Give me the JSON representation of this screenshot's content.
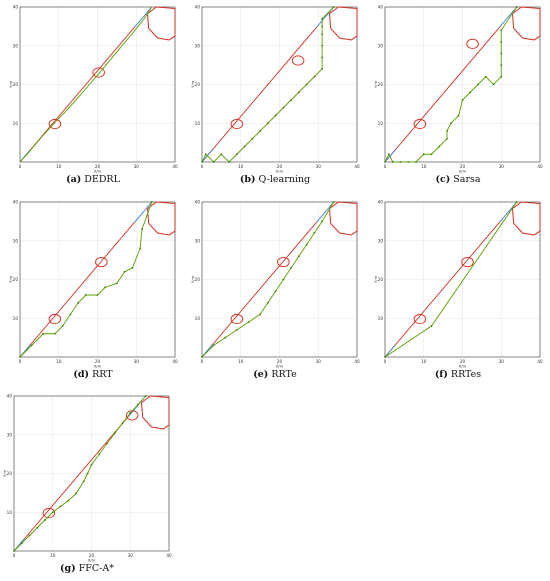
{
  "figure": {
    "panels": [
      {
        "letter": "(a)",
        "name": "DEDRL"
      },
      {
        "letter": "(b)",
        "name": "Q-learning"
      },
      {
        "letter": "(c)",
        "name": "Sarsa"
      },
      {
        "letter": "(d)",
        "name": "RRT"
      },
      {
        "letter": "(e)",
        "name": "RRTe"
      },
      {
        "letter": "(f)",
        "name": "RRTes"
      },
      {
        "letter": "(g)",
        "name": "FFC-A*"
      }
    ]
  },
  "colors": {
    "ideal_line": "#3a7fd5",
    "obstacle": "#d62d20",
    "path": "#5aa000",
    "path_marker": "#3d7a00",
    "grid": "#e6e6e6"
  },
  "chart_data": [
    {
      "type": "line",
      "title": "(a) DEDRL",
      "xlabel": "X/m",
      "ylabel": "Y/m",
      "xlim": [
        0,
        40
      ],
      "ylim": [
        0,
        40
      ],
      "xticks": [
        0,
        10,
        20,
        30,
        40
      ],
      "yticks": [
        10,
        20,
        30,
        40
      ],
      "grid": true,
      "obstacles": {
        "circles": [
          {
            "cx": 9,
            "cy": 9.8,
            "r": 1.2
          },
          {
            "cx": 20.3,
            "cy": 23.1,
            "r": 1.2
          }
        ],
        "polygon": [
          [
            35.2,
            40
          ],
          [
            40,
            39.6
          ],
          [
            40,
            32.5
          ],
          [
            38.5,
            31.5
          ],
          [
            35.5,
            32
          ],
          [
            33.2,
            34.5
          ],
          [
            32.9,
            38.3
          ],
          [
            35.2,
            40
          ]
        ]
      },
      "series": [
        {
          "role": "reference",
          "x": [
            0,
            34
          ],
          "y": [
            0,
            40
          ]
        },
        {
          "role": "path",
          "x": [
            0,
            2,
            4,
            6,
            8,
            10,
            12,
            14,
            16,
            18,
            20,
            22,
            24,
            26,
            28,
            30,
            32,
            34
          ],
          "y": [
            0,
            2.2,
            4.6,
            6.9,
            9.1,
            11.2,
            13.3,
            15.5,
            17.8,
            20.1,
            22.4,
            24.8,
            27.2,
            29.6,
            32,
            34.4,
            36.9,
            40
          ],
          "markers": false
        }
      ]
    },
    {
      "type": "line",
      "title": "(b) Q-learning",
      "xlabel": "X/m",
      "ylabel": "Y/m",
      "xlim": [
        0,
        40
      ],
      "ylim": [
        0,
        40
      ],
      "xticks": [
        0,
        10,
        20,
        30,
        40
      ],
      "yticks": [
        10,
        20,
        30,
        40
      ],
      "grid": true,
      "obstacles": {
        "circles": [
          {
            "cx": 9,
            "cy": 9.8,
            "r": 1.2
          },
          {
            "cx": 24.8,
            "cy": 26.2,
            "r": 1.2
          }
        ],
        "polygon": [
          [
            35.2,
            40
          ],
          [
            40,
            39.6
          ],
          [
            40,
            32.5
          ],
          [
            38.5,
            31.5
          ],
          [
            35.5,
            32
          ],
          [
            33.2,
            34.5
          ],
          [
            32.9,
            38.3
          ],
          [
            35.2,
            40
          ]
        ]
      },
      "series": [
        {
          "role": "reference",
          "x": [
            0,
            34
          ],
          "y": [
            0,
            40
          ]
        },
        {
          "role": "path",
          "x": [
            0,
            1,
            3,
            5,
            7,
            9,
            11,
            13,
            15,
            17,
            19,
            21,
            23,
            25,
            27,
            29,
            31,
            31,
            31,
            31,
            31,
            31,
            34
          ],
          "y": [
            0,
            2,
            0,
            2,
            0,
            2,
            4,
            6,
            8,
            10,
            12,
            14,
            16,
            18,
            20,
            22,
            24,
            27,
            30,
            33,
            35,
            37,
            40
          ],
          "markers": true
        }
      ]
    },
    {
      "type": "line",
      "title": "(c) Sarsa",
      "xlabel": "X/m",
      "ylabel": "Y/m",
      "xlim": [
        0,
        40
      ],
      "ylim": [
        0,
        40
      ],
      "xticks": [
        0,
        10,
        20,
        30,
        40
      ],
      "yticks": [
        10,
        20,
        30,
        40
      ],
      "grid": true,
      "obstacles": {
        "circles": [
          {
            "cx": 9,
            "cy": 9.8,
            "r": 1.2
          },
          {
            "cx": 22.6,
            "cy": 30.5,
            "r": 1.2
          }
        ],
        "polygon": [
          [
            35.2,
            40
          ],
          [
            40,
            39.6
          ],
          [
            40,
            32.5
          ],
          [
            38.5,
            31.5
          ],
          [
            35.5,
            32
          ],
          [
            33.2,
            34.5
          ],
          [
            32.9,
            38.3
          ],
          [
            35.2,
            40
          ]
        ]
      },
      "series": [
        {
          "role": "reference",
          "x": [
            0,
            34
          ],
          "y": [
            0,
            40
          ]
        },
        {
          "role": "path",
          "x": [
            0,
            1,
            2,
            4,
            6,
            8,
            10,
            12,
            14,
            16,
            16,
            17,
            19,
            20,
            22,
            24,
            26,
            28,
            30,
            30,
            30,
            30,
            30,
            34
          ],
          "y": [
            0,
            2,
            0,
            0,
            0,
            0,
            2,
            2,
            4,
            6,
            8,
            10,
            12,
            16,
            18,
            20,
            22,
            20,
            22,
            25,
            28,
            31,
            34,
            40
          ],
          "markers": true
        }
      ]
    },
    {
      "type": "line",
      "title": "(d) RRT",
      "xlabel": "X/m",
      "ylabel": "Y/m",
      "xlim": [
        0,
        40
      ],
      "ylim": [
        0,
        40
      ],
      "xticks": [
        0,
        10,
        20,
        30,
        40
      ],
      "yticks": [
        10,
        20,
        30,
        40
      ],
      "grid": true,
      "obstacles": {
        "circles": [
          {
            "cx": 9,
            "cy": 9.8,
            "r": 1.2
          },
          {
            "cx": 21,
            "cy": 24.5,
            "r": 1.2
          }
        ],
        "polygon": [
          [
            35.2,
            40
          ],
          [
            40,
            39.6
          ],
          [
            40,
            32.5
          ],
          [
            38.5,
            31.5
          ],
          [
            35.5,
            32
          ],
          [
            33.2,
            34.5
          ],
          [
            32.9,
            38.3
          ],
          [
            35.2,
            40
          ]
        ]
      },
      "series": [
        {
          "role": "reference",
          "x": [
            0,
            34
          ],
          "y": [
            0,
            40
          ]
        },
        {
          "role": "path",
          "x": [
            0,
            3,
            6,
            9,
            11,
            13,
            15,
            17,
            20,
            22,
            25,
            27,
            29,
            31,
            31.5,
            34
          ],
          "y": [
            0,
            3,
            6,
            6,
            8,
            11,
            14,
            16,
            16,
            18,
            19,
            22,
            23,
            28,
            33,
            40
          ],
          "markers": true
        }
      ]
    },
    {
      "type": "line",
      "title": "(e) RRTe",
      "xlabel": "X/m",
      "ylabel": "Y/m",
      "xlim": [
        0,
        40
      ],
      "ylim": [
        0,
        40
      ],
      "xticks": [
        0,
        10,
        20,
        30,
        40
      ],
      "yticks": [
        10,
        20,
        30,
        40
      ],
      "grid": true,
      "obstacles": {
        "circles": [
          {
            "cx": 9,
            "cy": 9.8,
            "r": 1.2
          },
          {
            "cx": 21,
            "cy": 24.5,
            "r": 1.2
          }
        ],
        "polygon": [
          [
            35.2,
            40
          ],
          [
            40,
            39.6
          ],
          [
            40,
            32.5
          ],
          [
            38.5,
            31.5
          ],
          [
            35.5,
            32
          ],
          [
            33.2,
            34.5
          ],
          [
            32.9,
            38.3
          ],
          [
            35.2,
            40
          ]
        ]
      },
      "series": [
        {
          "role": "reference",
          "x": [
            0,
            34
          ],
          "y": [
            0,
            40
          ]
        },
        {
          "role": "path",
          "x": [
            0,
            3,
            6,
            9,
            12,
            15,
            17,
            19,
            21,
            23,
            25,
            27,
            29,
            31,
            34
          ],
          "y": [
            0,
            3,
            5,
            7,
            9,
            11,
            14,
            17,
            20,
            23,
            26,
            29,
            32,
            35,
            40
          ],
          "markers": true
        }
      ]
    },
    {
      "type": "line",
      "title": "(f) RRTes",
      "xlabel": "X/m",
      "ylabel": "Y/m",
      "xlim": [
        0,
        40
      ],
      "ylim": [
        0,
        40
      ],
      "xticks": [
        0,
        10,
        20,
        30,
        40
      ],
      "yticks": [
        10,
        20,
        30,
        40
      ],
      "grid": true,
      "obstacles": {
        "circles": [
          {
            "cx": 9,
            "cy": 9.8,
            "r": 1.2
          },
          {
            "cx": 21.3,
            "cy": 24.5,
            "r": 1.2
          }
        ],
        "polygon": [
          [
            35.2,
            40
          ],
          [
            40,
            39.6
          ],
          [
            40,
            32.5
          ],
          [
            38.5,
            31.5
          ],
          [
            35.5,
            32
          ],
          [
            33.2,
            34.5
          ],
          [
            32.9,
            38.3
          ],
          [
            35.2,
            40
          ]
        ]
      },
      "series": [
        {
          "role": "reference",
          "x": [
            0,
            34
          ],
          "y": [
            0,
            40
          ]
        },
        {
          "role": "path",
          "x": [
            0,
            12,
            34
          ],
          "y": [
            0,
            8,
            40
          ],
          "markers": true
        }
      ]
    },
    {
      "type": "line",
      "title": "(g) FFC-A*",
      "xlabel": "X/m",
      "ylabel": "Y/m",
      "xlim": [
        0,
        40
      ],
      "ylim": [
        0,
        40
      ],
      "xticks": [
        0,
        10,
        20,
        30,
        40
      ],
      "yticks": [
        10,
        20,
        30,
        40
      ],
      "grid": true,
      "obstacles": {
        "circles": [
          {
            "cx": 9,
            "cy": 9.8,
            "r": 1.2
          },
          {
            "cx": 30.5,
            "cy": 35,
            "r": 1.2
          }
        ],
        "polygon": [
          [
            35.2,
            40
          ],
          [
            40,
            39.6
          ],
          [
            40,
            32.5
          ],
          [
            38.5,
            31.5
          ],
          [
            35.5,
            32
          ],
          [
            33.2,
            34.5
          ],
          [
            32.9,
            38.3
          ],
          [
            35.2,
            40
          ]
        ]
      },
      "series": [
        {
          "role": "reference",
          "x": [
            0,
            34
          ],
          "y": [
            0,
            40
          ]
        },
        {
          "role": "path",
          "x": [
            0,
            2,
            4,
            6,
            8,
            10,
            12,
            14,
            16,
            18,
            19,
            20,
            22,
            24,
            26,
            28,
            30,
            32,
            34
          ],
          "y": [
            0,
            2,
            4,
            6,
            8,
            10,
            11.5,
            13,
            14.8,
            18,
            20,
            22.3,
            25,
            27.7,
            30.4,
            33,
            35.6,
            37.8,
            40
          ],
          "markers": true
        }
      ]
    }
  ]
}
